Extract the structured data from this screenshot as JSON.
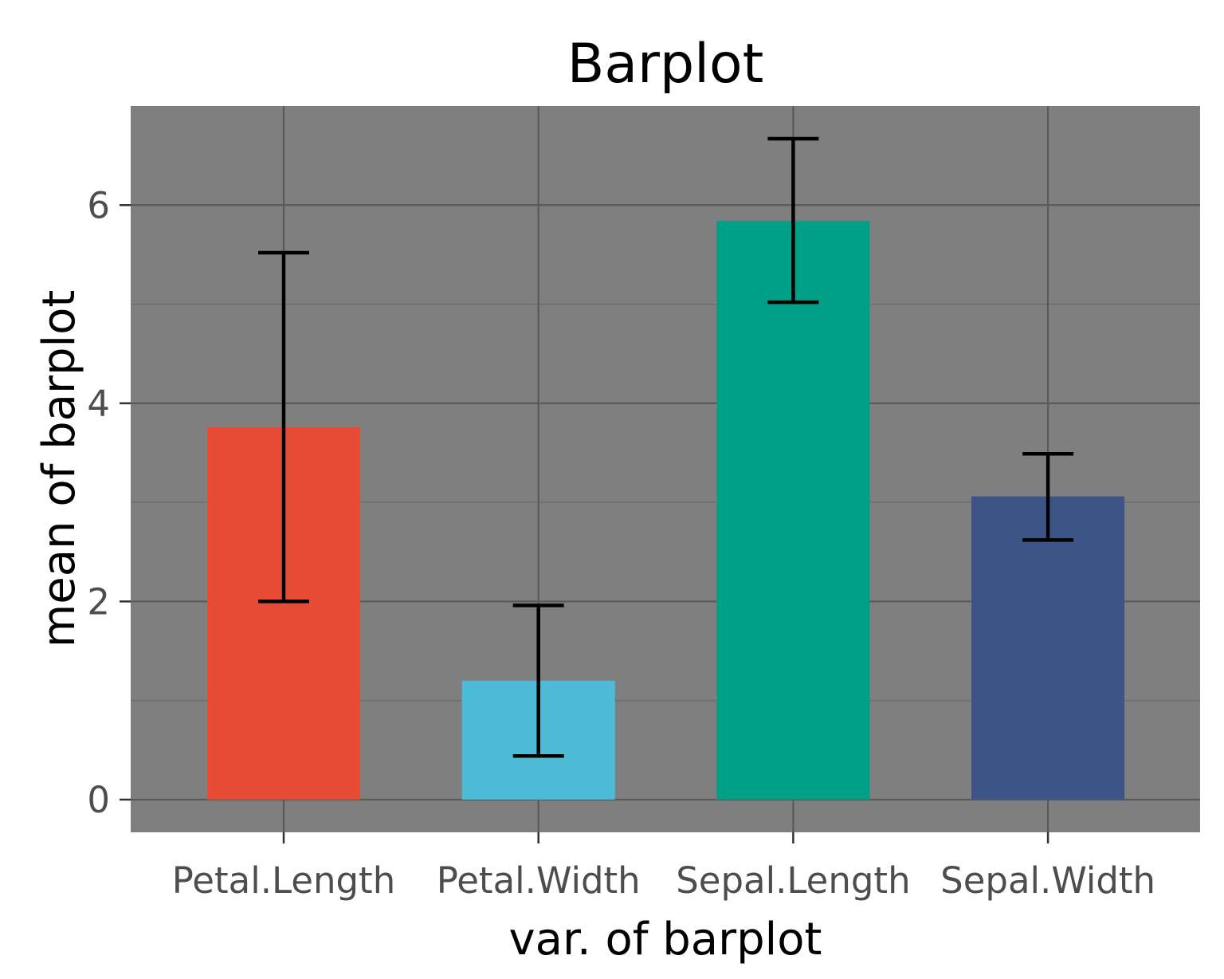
{
  "chart_data": {
    "type": "bar",
    "title": "Barplot",
    "xlabel": "var. of barplot",
    "ylabel": "mean of barplot",
    "categories": [
      "Petal.Length",
      "Petal.Width",
      "Sepal.Length",
      "Sepal.Width"
    ],
    "values": [
      3.76,
      1.2,
      5.84,
      3.06
    ],
    "error_low": [
      2.0,
      0.44,
      5.02,
      2.62
    ],
    "error_high": [
      5.52,
      1.96,
      6.67,
      3.49
    ],
    "colors": [
      "#E64B35",
      "#4DBBD5",
      "#00A087",
      "#3C5488"
    ],
    "ylim": [
      -0.33,
      7.0
    ],
    "yticks": [
      0,
      2,
      4,
      6
    ],
    "ytick_labels": [
      "0",
      "2",
      "4",
      "6"
    ],
    "grid": true,
    "panel_background": "#7f7f7f"
  }
}
